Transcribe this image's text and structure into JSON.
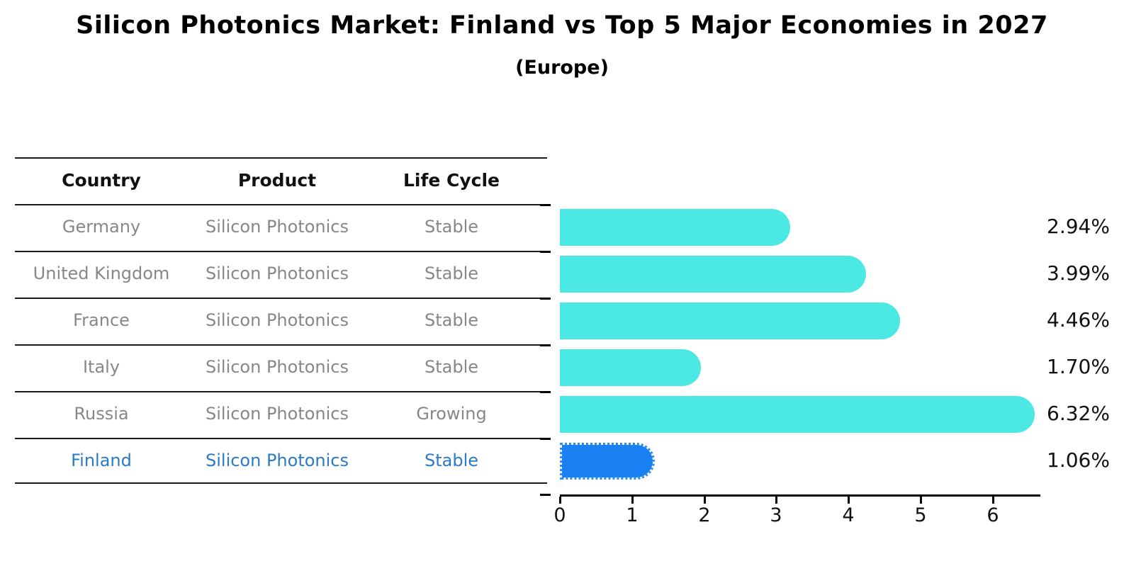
{
  "header": {
    "title": "Silicon Photonics Market: Finland vs Top 5 Major Economies in 2027",
    "subtitle": "(Europe)"
  },
  "table": {
    "columns": [
      "Country",
      "Product",
      "Life Cycle"
    ],
    "rows": [
      {
        "country": "Germany",
        "product": "Silicon Photonics",
        "life_cycle": "Stable",
        "highlighted": false
      },
      {
        "country": "United Kingdom",
        "product": "Silicon Photonics",
        "life_cycle": "Stable",
        "highlighted": false
      },
      {
        "country": "France",
        "product": "Silicon Photonics",
        "life_cycle": "Stable",
        "highlighted": false
      },
      {
        "country": "Italy",
        "product": "Silicon Photonics",
        "life_cycle": "Stable",
        "highlighted": false
      },
      {
        "country": "Russia",
        "product": "Silicon Photonics",
        "life_cycle": "Growing",
        "highlighted": false
      },
      {
        "country": "Finland",
        "product": "Silicon Photonics",
        "life_cycle": "Stable",
        "highlighted": true
      }
    ]
  },
  "chart_data": {
    "type": "bar",
    "orientation": "horizontal",
    "title": "Silicon Photonics Market: Finland vs Top 5 Major Economies in 2027",
    "subtitle": "(Europe)",
    "categories": [
      "Germany",
      "United Kingdom",
      "France",
      "Italy",
      "Russia",
      "Finland"
    ],
    "values": [
      2.94,
      3.99,
      4.46,
      1.7,
      6.32,
      1.06
    ],
    "labels": [
      "2.94%",
      "3.99%",
      "4.46%",
      "1.70%",
      "6.32%",
      "1.06%"
    ],
    "x_ticks": [
      "0",
      "1",
      "2",
      "3",
      "4",
      "5",
      "6"
    ],
    "xlim": [
      0,
      6.66
    ],
    "grid": false,
    "legend": "none",
    "bar_color": "#4be8e4",
    "highlight_color": "#1b81f2",
    "highlight_index": 5,
    "highlight_category": "Finland"
  },
  "colors": {
    "bar_cyan": "#4be8e4",
    "bar_blue": "#1b81f2",
    "highlight_text": "#2a7ac7",
    "muted_text": "#878787",
    "heading_text": "#111111",
    "line": "#1a1a1a",
    "background": "#ffffff"
  }
}
